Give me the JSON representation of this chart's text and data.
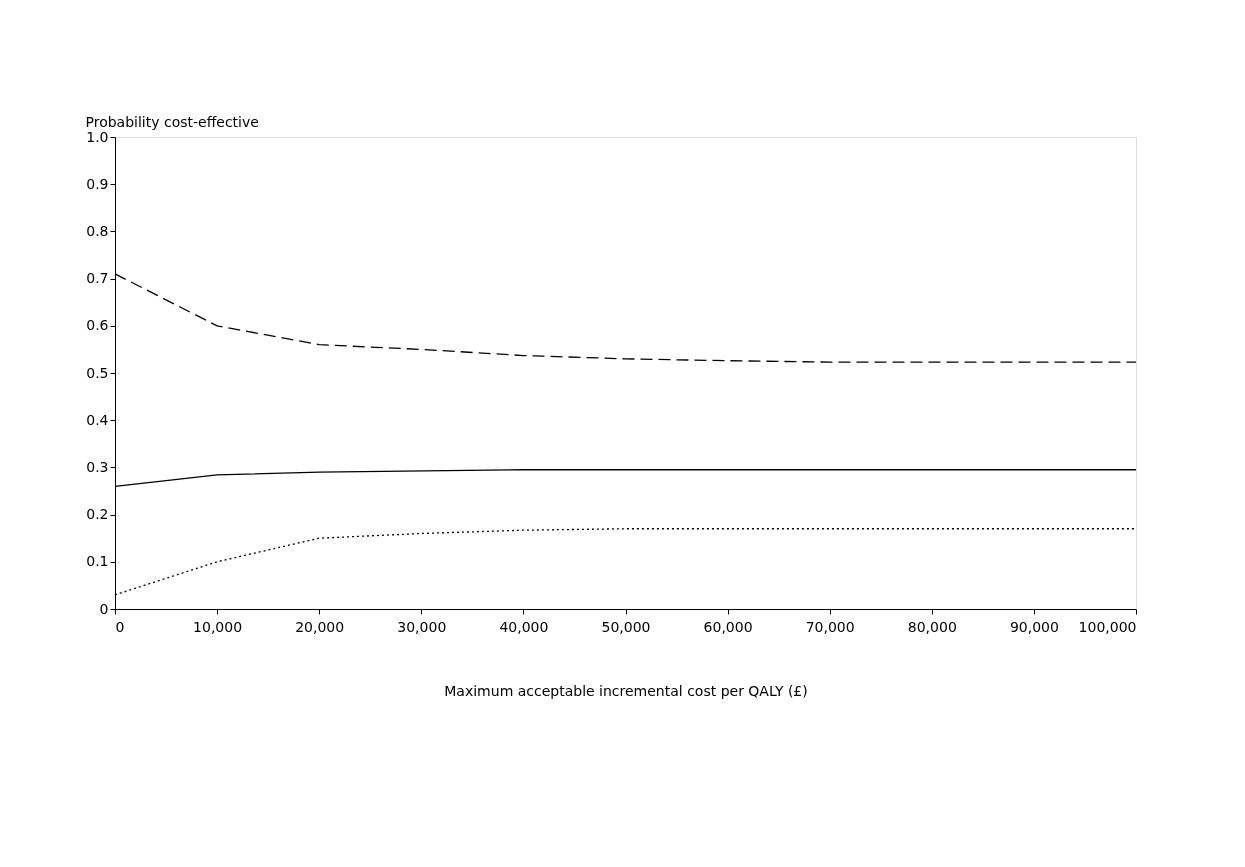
{
  "chart_data": {
    "type": "line",
    "xlabel": "Maximum acceptable incremental cost per QALY (£)",
    "ylabel": "Probability cost-effective",
    "xlim": [
      0,
      100000
    ],
    "xticks": [
      0,
      {
        "value": 10000,
        "label": "10,000"
      },
      {
        "value": 20000,
        "label": "20,000"
      },
      {
        "value": 30000,
        "label": "30,000"
      },
      {
        "value": 40000,
        "label": "40,000"
      },
      {
        "value": 50000,
        "label": "50,000"
      },
      {
        "value": 60000,
        "label": "60,000"
      },
      {
        "value": 70000,
        "label": "70,000"
      },
      {
        "value": 80000,
        "label": "80,000"
      },
      {
        "value": 90000,
        "label": "90,000"
      },
      {
        "value": 100000,
        "label": "100,000"
      }
    ],
    "ylim": [
      0,
      1
    ],
    "yticks": [
      0,
      0.1,
      0.2,
      0.3,
      0.4,
      0.5,
      0.6,
      0.7,
      0.8,
      0.9,
      {
        "value": 1,
        "label": "1.0"
      }
    ],
    "series": [
      {
        "color": "#000000",
        "line_style": "dashed",
        "x": [
          0,
          10000,
          20000,
          30000,
          40000,
          50000,
          60000,
          70000,
          80000,
          100000
        ],
        "values": [
          0.71,
          0.6,
          0.56,
          0.55,
          0.537,
          0.53,
          0.526,
          0.523,
          0.523,
          0.523
        ]
      },
      {
        "color": "#000000",
        "line_style": "solid",
        "x": [
          0,
          10000,
          20000,
          40000,
          100000
        ],
        "values": [
          0.26,
          0.284,
          0.29,
          0.295,
          0.295
        ]
      },
      {
        "color": "#000000",
        "line_style": "dotted",
        "x": [
          0,
          10000,
          20000,
          30000,
          40000,
          50000,
          100000
        ],
        "values": [
          0.03,
          0.1,
          0.15,
          0.16,
          0.167,
          0.17,
          0.17
        ]
      }
    ]
  }
}
